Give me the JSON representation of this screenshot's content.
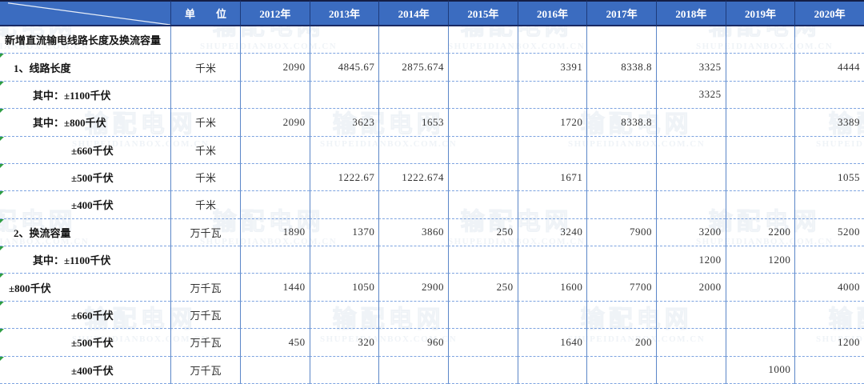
{
  "table": {
    "unit_header": "单　　位",
    "year_columns": [
      "2012年",
      "2013年",
      "2014年",
      "2015年",
      "2016年",
      "2017年",
      "2018年",
      "2019年",
      "2020年"
    ],
    "rows": [
      {
        "label": "新增直流输电线路长度及换流容量",
        "unit": "",
        "indent": 0,
        "marker": false,
        "values": [
          "",
          "",
          "",
          "",
          "",
          "",
          "",
          "",
          ""
        ]
      },
      {
        "label": "1、线路长度",
        "unit": "千米",
        "indent": 1,
        "marker": true,
        "values": [
          "2090",
          "4845.67",
          "2875.674",
          "",
          "3391",
          "8338.8",
          "3325",
          "",
          "4444"
        ]
      },
      {
        "label": "其中：±1100千伏",
        "unit": "",
        "indent": 2,
        "marker": true,
        "values": [
          "",
          "",
          "",
          "",
          "",
          "",
          "3325",
          "",
          ""
        ]
      },
      {
        "label": "其中：±800千伏",
        "unit": "千米",
        "indent": 2,
        "marker": true,
        "values": [
          "2090",
          "3623",
          "1653",
          "",
          "1720",
          "8338.8",
          "",
          "",
          "3389"
        ]
      },
      {
        "label": "±660千伏",
        "unit": "千米",
        "indent": 3,
        "marker": true,
        "values": [
          "",
          "",
          "",
          "",
          "",
          "",
          "",
          "",
          ""
        ]
      },
      {
        "label": "±500千伏",
        "unit": "千米",
        "indent": 3,
        "marker": true,
        "values": [
          "",
          "1222.67",
          "1222.674",
          "",
          "1671",
          "",
          "",
          "",
          "1055"
        ]
      },
      {
        "label": "±400千伏",
        "unit": "千米",
        "indent": 3,
        "marker": true,
        "values": [
          "",
          "",
          "",
          "",
          "",
          "",
          "",
          "",
          ""
        ]
      },
      {
        "label": "2、换流容量",
        "unit": "万千瓦",
        "indent": 1,
        "marker": true,
        "values": [
          "1890",
          "1370",
          "3860",
          "250",
          "3240",
          "7900",
          "3200",
          "2200",
          "5200"
        ]
      },
      {
        "label": "其中：±1100千伏",
        "unit": "",
        "indent": 2,
        "marker": true,
        "values": [
          "",
          "",
          "",
          "",
          "",
          "",
          "1200",
          "1200",
          ""
        ]
      },
      {
        "label": "±800千伏",
        "unit": "万千瓦",
        "indent": 4,
        "marker": true,
        "values": [
          "1440",
          "1050",
          "2900",
          "250",
          "1600",
          "7700",
          "2000",
          "",
          "4000"
        ]
      },
      {
        "label": "±660千伏",
        "unit": "万千瓦",
        "indent": 3,
        "marker": true,
        "values": [
          "",
          "",
          "",
          "",
          "",
          "",
          "",
          "",
          ""
        ]
      },
      {
        "label": "±500千伏",
        "unit": "万千瓦",
        "indent": 3,
        "marker": true,
        "values": [
          "450",
          "320",
          "960",
          "",
          "1640",
          "200",
          "",
          "",
          "1200"
        ]
      },
      {
        "label": "±400千伏",
        "unit": "万千瓦",
        "indent": 3,
        "marker": true,
        "values": [
          "",
          "",
          "",
          "",
          "",
          "",
          "",
          "1000",
          ""
        ]
      }
    ]
  },
  "watermark": {
    "cn": "输配电网",
    "en": "SHUPEIDIANBOX.COM.CN"
  },
  "colors": {
    "header_bg": "#3b6cc0",
    "header_text": "#ffffff",
    "header_dark_border": "#1d3a7a",
    "grid_vertical": "#5b86c8",
    "grid_dashed": "#7ea4e0",
    "marker_green": "#2f9e44",
    "body_text": "#333333"
  }
}
